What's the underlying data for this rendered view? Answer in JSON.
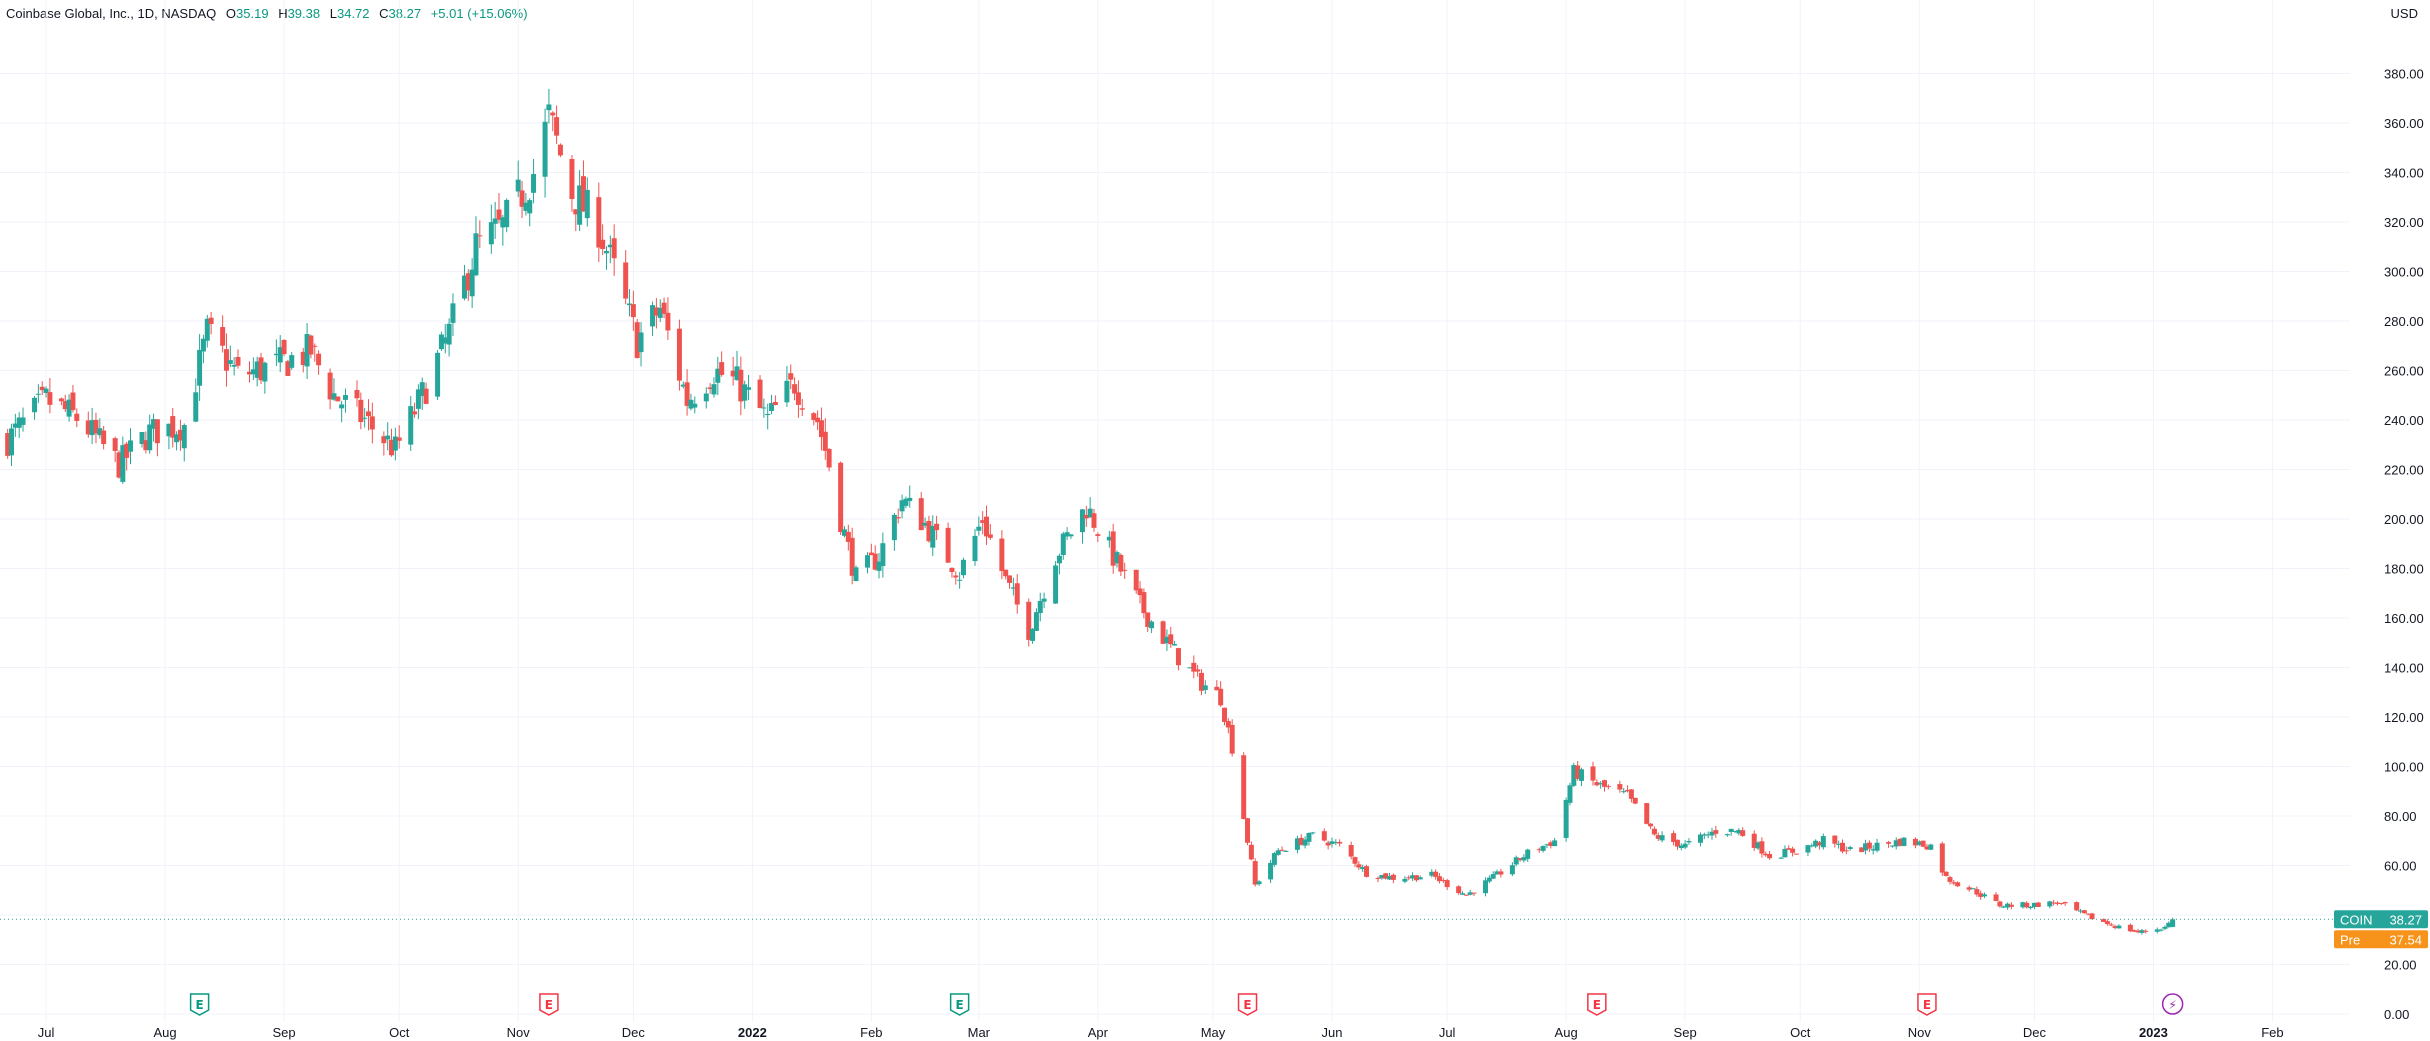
{
  "legend": {
    "title": "Coinbase Global, Inc., 1D, NASDAQ",
    "o_label": "O",
    "o_value": "35.19",
    "h_label": "H",
    "h_value": "39.38",
    "l_label": "L",
    "l_value": "34.72",
    "c_label": "C",
    "c_value": "38.27",
    "change": "+5.01 (+15.06%)"
  },
  "currency": "USD",
  "colors": {
    "up": "#26a69a",
    "down": "#ef5350",
    "grid": "#f0f3fa",
    "text": "#131722",
    "legend_value": "#089981",
    "price_line": "#26a69a",
    "pre_market": "#f7931a",
    "earnings_up": "#089981",
    "earnings_down": "#f23645",
    "event_purple": "#9c27b0"
  },
  "chart_data": {
    "type": "candlestick",
    "ylim": [
      0,
      400
    ],
    "y_ticks": [
      "0.00",
      "20.00",
      "40.00",
      "60.00",
      "80.00",
      "100.00",
      "120.00",
      "140.00",
      "160.00",
      "180.00",
      "200.00",
      "220.00",
      "240.00",
      "260.00",
      "280.00",
      "300.00",
      "320.00",
      "340.00",
      "360.00",
      "380.00"
    ],
    "x_labels": [
      "Jul",
      "Aug",
      "Sep",
      "Oct",
      "Nov",
      "Dec",
      "2022",
      "Feb",
      "Mar",
      "Apr",
      "May",
      "Jun",
      "Jul",
      "Aug",
      "Sep",
      "Oct",
      "Nov",
      "Dec",
      "2023",
      "Feb"
    ],
    "x_label_dates": [
      "2021-07-01",
      "2021-08-01",
      "2021-09-01",
      "2021-10-01",
      "2021-11-01",
      "2021-12-01",
      "2022-01-01",
      "2022-02-01",
      "2022-03-01",
      "2022-04-01",
      "2022-05-01",
      "2022-06-01",
      "2022-07-01",
      "2022-08-01",
      "2022-09-01",
      "2022-10-01",
      "2022-11-01",
      "2022-12-01",
      "2023-01-01",
      "2023-02-01"
    ],
    "x_range_dates": [
      "2021-06-19",
      "2023-02-16"
    ],
    "close_trend": [
      [
        "2021-06-21",
        232
      ],
      [
        "2021-07-01",
        248
      ],
      [
        "2021-07-10",
        240
      ],
      [
        "2021-07-20",
        222
      ],
      [
        "2021-07-28",
        235
      ],
      [
        "2021-08-06",
        238
      ],
      [
        "2021-08-12",
        275
      ],
      [
        "2021-08-20",
        258
      ],
      [
        "2021-08-30",
        262
      ],
      [
        "2021-09-08",
        268
      ],
      [
        "2021-09-14",
        250
      ],
      [
        "2021-09-22",
        240
      ],
      [
        "2021-09-30",
        228
      ],
      [
        "2021-10-07",
        250
      ],
      [
        "2021-10-14",
        275
      ],
      [
        "2021-10-21",
        310
      ],
      [
        "2021-10-28",
        318
      ],
      [
        "2021-11-05",
        340
      ],
      [
        "2021-11-09",
        362
      ],
      [
        "2021-11-15",
        332
      ],
      [
        "2021-11-22",
        318
      ],
      [
        "2021-11-26",
        300
      ],
      [
        "2021-12-02",
        272
      ],
      [
        "2021-12-08",
        285
      ],
      [
        "2021-12-15",
        248
      ],
      [
        "2021-12-22",
        260
      ],
      [
        "2021-12-28",
        255
      ],
      [
        "2022-01-05",
        240
      ],
      [
        "2022-01-12",
        255
      ],
      [
        "2022-01-18",
        240
      ],
      [
        "2022-01-21",
        222
      ],
      [
        "2022-01-24",
        200
      ],
      [
        "2022-01-28",
        176
      ],
      [
        "2022-02-03",
        185
      ],
      [
        "2022-02-09",
        208
      ],
      [
        "2022-02-15",
        198
      ],
      [
        "2022-02-24",
        178
      ],
      [
        "2022-03-02",
        200
      ],
      [
        "2022-03-08",
        175
      ],
      [
        "2022-03-14",
        155
      ],
      [
        "2022-03-21",
        185
      ],
      [
        "2022-03-29",
        205
      ],
      [
        "2022-04-05",
        185
      ],
      [
        "2022-04-12",
        165
      ],
      [
        "2022-04-20",
        148
      ],
      [
        "2022-04-27",
        135
      ],
      [
        "2022-05-03",
        128
      ],
      [
        "2022-05-06",
        108
      ],
      [
        "2022-05-10",
        70
      ],
      [
        "2022-05-12",
        52
      ],
      [
        "2022-05-18",
        66
      ],
      [
        "2022-05-27",
        72
      ],
      [
        "2022-06-03",
        68
      ],
      [
        "2022-06-10",
        57
      ],
      [
        "2022-06-17",
        55
      ],
      [
        "2022-06-27",
        56
      ],
      [
        "2022-07-06",
        48
      ],
      [
        "2022-07-13",
        55
      ],
      [
        "2022-07-22",
        65
      ],
      [
        "2022-07-29",
        70
      ],
      [
        "2022-08-03",
        98
      ],
      [
        "2022-08-10",
        92
      ],
      [
        "2022-08-17",
        88
      ],
      [
        "2022-08-24",
        72
      ],
      [
        "2022-09-01",
        68
      ],
      [
        "2022-09-09",
        74
      ],
      [
        "2022-09-15",
        74
      ],
      [
        "2022-09-23",
        64
      ],
      [
        "2022-09-30",
        66
      ],
      [
        "2022-10-07",
        70
      ],
      [
        "2022-10-14",
        66
      ],
      [
        "2022-10-21",
        68
      ],
      [
        "2022-10-28",
        70
      ],
      [
        "2022-11-04",
        68
      ],
      [
        "2022-11-08",
        55
      ],
      [
        "2022-11-15",
        50
      ],
      [
        "2022-11-22",
        44
      ],
      [
        "2022-11-30",
        44
      ],
      [
        "2022-12-07",
        45
      ],
      [
        "2022-12-14",
        40
      ],
      [
        "2022-12-21",
        36
      ],
      [
        "2022-12-28",
        33
      ],
      [
        "2023-01-04",
        35
      ],
      [
        "2023-01-06",
        38.27
      ]
    ],
    "last_price": {
      "label": "COIN",
      "value": "38.27"
    },
    "pre_market": {
      "label": "Pre",
      "value": "37.54"
    },
    "event_markers": [
      {
        "date": "2021-08-10",
        "label": "E",
        "kind": "up"
      },
      {
        "date": "2021-11-09",
        "label": "E",
        "kind": "down"
      },
      {
        "date": "2022-02-24",
        "label": "E",
        "kind": "up"
      },
      {
        "date": "2022-05-10",
        "label": "E",
        "kind": "down"
      },
      {
        "date": "2022-08-09",
        "label": "E",
        "kind": "down"
      },
      {
        "date": "2022-11-03",
        "label": "E",
        "kind": "down"
      },
      {
        "date": "2023-01-06",
        "label": "⚡",
        "kind": "purple"
      }
    ]
  }
}
